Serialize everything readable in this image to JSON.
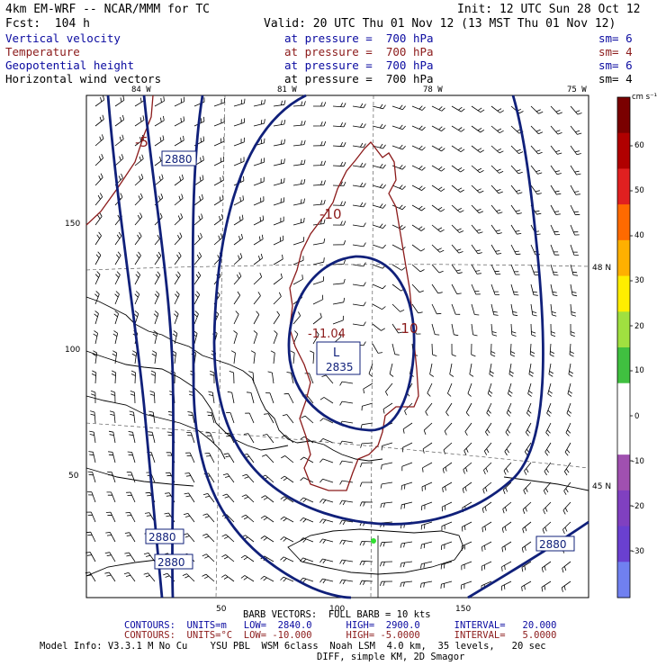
{
  "header": {
    "model": "4km EM-WRF -- NCAR/MMM for TC",
    "init": "Init: 12 UTC Sun 28 Oct 12",
    "fcst": "Fcst:  104 h",
    "valid": "Valid: 20 UTC Thu 01 Nov 12 (13 MST Thu 01 Nov 12)"
  },
  "fields": [
    {
      "name": "Vertical velocity",
      "level": "at pressure =  700 hPa",
      "sm": "sm= 6",
      "color": "#0a0aa0"
    },
    {
      "name": "Temperature",
      "level": "at pressure =  700 hPa",
      "sm": "sm= 4",
      "color": "#8b1a1a"
    },
    {
      "name": "Geopotential height",
      "level": "at pressure =  700 hPa",
      "sm": "sm= 6",
      "color": "#0a0aa0"
    },
    {
      "name": "Horizontal wind vectors",
      "level": "at pressure =  700 hPa",
      "sm": "sm= 4",
      "color": "#000000"
    }
  ],
  "longitudes": [
    "84 W",
    "81 W",
    "78 W",
    "75 W"
  ],
  "latitudes": [
    "48 N",
    "45 N"
  ],
  "grid_x_ticks": [
    "50",
    "100",
    "150"
  ],
  "grid_y_ticks": [
    "150",
    "100",
    "50"
  ],
  "contour_labels": {
    "height": [
      "2880",
      "2835",
      "2880",
      "2880",
      "2880"
    ],
    "temperature": [
      "-5",
      "-10",
      "-10",
      "-11.04"
    ],
    "low_marker": "L"
  },
  "colorbar": {
    "units": "cm s⁻¹",
    "labels": [
      "60",
      "50",
      "40",
      "30",
      "20",
      "10",
      "0",
      "-10",
      "-20",
      "-30"
    ],
    "colors": [
      "#7a0000",
      "#b00000",
      "#e02020",
      "#ff6a00",
      "#ffb000",
      "#ffee00",
      "#a0e040",
      "#40c040",
      "#ffffff",
      "#ffffff",
      "#a050b0",
      "#8040c0",
      "#6a40d0",
      "#7080f0"
    ]
  },
  "footer": {
    "barb": "BARB VECTORS:  FULL BARB = 10 kts",
    "contours1": "CONTOURS:  UNITS=m   LOW=  2840.0      HIGH=  2900.0      INTERVAL=   20.000",
    "contours2": "CONTOURS:  UNITS=°C  LOW= -10.000      HIGH= -5.0000      INTERVAL=   5.0000",
    "model_info": "Model Info: V3.3.1 M No Cu    YSU PBL  WSM 6class  Noah LSM  4.0 km,  35 levels,   20 sec",
    "model_info2": "DIFF, simple KM, 2D Smagor"
  }
}
